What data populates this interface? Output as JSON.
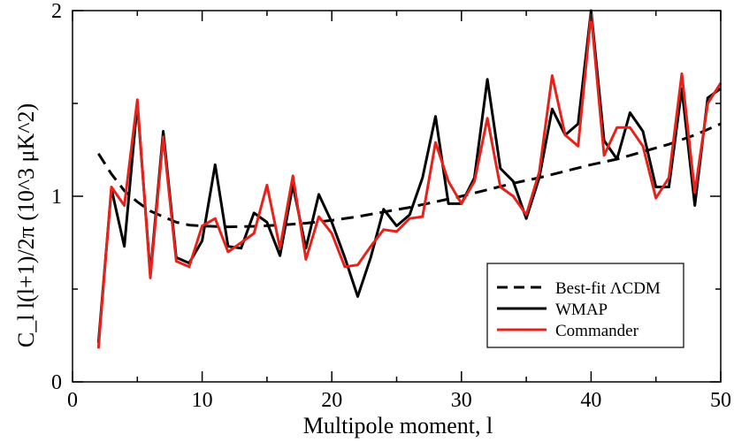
{
  "chart_data": {
    "type": "line",
    "title": "",
    "xlabel": "Multipole moment, l",
    "ylabel": "C_l l(l+1)/2π (10^3 μK^2)",
    "xlim": [
      0,
      50
    ],
    "ylim": [
      0,
      2
    ],
    "x_ticks": [
      0,
      10,
      20,
      30,
      40,
      50
    ],
    "y_ticks": [
      0,
      1,
      2
    ],
    "grid": false,
    "legend_position": "bottom-right",
    "series": [
      {
        "name": "Best-fit ΛCDM",
        "color": "#000000",
        "style": "dashed",
        "x": [
          2,
          3,
          4,
          5,
          6,
          7,
          8,
          9,
          10,
          12,
          14,
          16,
          18,
          20,
          22,
          24,
          26,
          28,
          30,
          32,
          34,
          36,
          38,
          40,
          42,
          44,
          46,
          48,
          50
        ],
        "y": [
          1.23,
          1.12,
          1.03,
          0.97,
          0.92,
          0.89,
          0.86,
          0.845,
          0.84,
          0.835,
          0.838,
          0.845,
          0.855,
          0.87,
          0.89,
          0.915,
          0.94,
          0.97,
          1.0,
          1.035,
          1.07,
          1.1,
          1.135,
          1.17,
          1.2,
          1.24,
          1.28,
          1.33,
          1.39
        ]
      },
      {
        "name": "WMAP",
        "color": "#000000",
        "style": "solid",
        "x": [
          2,
          3,
          4,
          5,
          6,
          7,
          8,
          9,
          10,
          11,
          12,
          13,
          14,
          15,
          16,
          17,
          18,
          19,
          20,
          21,
          22,
          23,
          24,
          25,
          26,
          27,
          28,
          29,
          30,
          31,
          32,
          33,
          34,
          35,
          36,
          37,
          38,
          39,
          40,
          41,
          42,
          43,
          44,
          45,
          46,
          47,
          48,
          49,
          50
        ],
        "y": [
          0.21,
          1.04,
          0.73,
          1.5,
          0.58,
          1.35,
          0.67,
          0.64,
          0.76,
          1.17,
          0.73,
          0.72,
          0.91,
          0.86,
          0.68,
          1.06,
          0.72,
          1.01,
          0.86,
          0.67,
          0.46,
          0.67,
          0.93,
          0.84,
          0.9,
          1.1,
          1.43,
          0.96,
          0.96,
          1.1,
          1.63,
          1.15,
          1.08,
          0.88,
          1.1,
          1.47,
          1.33,
          1.39,
          2.0,
          1.3,
          1.2,
          1.45,
          1.35,
          1.05,
          1.05,
          1.58,
          0.95,
          1.53,
          1.58
        ]
      },
      {
        "name": "Commander",
        "color": "#e8221b",
        "style": "solid",
        "x": [
          2,
          3,
          4,
          5,
          6,
          7,
          8,
          9,
          10,
          11,
          12,
          13,
          14,
          15,
          16,
          17,
          18,
          19,
          20,
          21,
          22,
          23,
          24,
          25,
          26,
          27,
          28,
          29,
          30,
          31,
          32,
          33,
          34,
          35,
          36,
          37,
          38,
          39,
          40,
          41,
          42,
          43,
          44,
          45,
          46,
          47,
          48,
          49,
          50
        ],
        "y": [
          0.18,
          1.05,
          0.95,
          1.52,
          0.56,
          1.32,
          0.65,
          0.62,
          0.84,
          0.88,
          0.7,
          0.75,
          0.8,
          1.06,
          0.72,
          1.11,
          0.66,
          0.89,
          0.8,
          0.62,
          0.63,
          0.73,
          0.82,
          0.81,
          0.88,
          0.89,
          1.29,
          1.08,
          0.96,
          1.08,
          1.42,
          1.05,
          1.0,
          0.9,
          1.13,
          1.65,
          1.33,
          1.27,
          1.98,
          1.22,
          1.37,
          1.37,
          1.27,
          0.99,
          1.1,
          1.66,
          1.02,
          1.5,
          1.61
        ]
      }
    ]
  }
}
